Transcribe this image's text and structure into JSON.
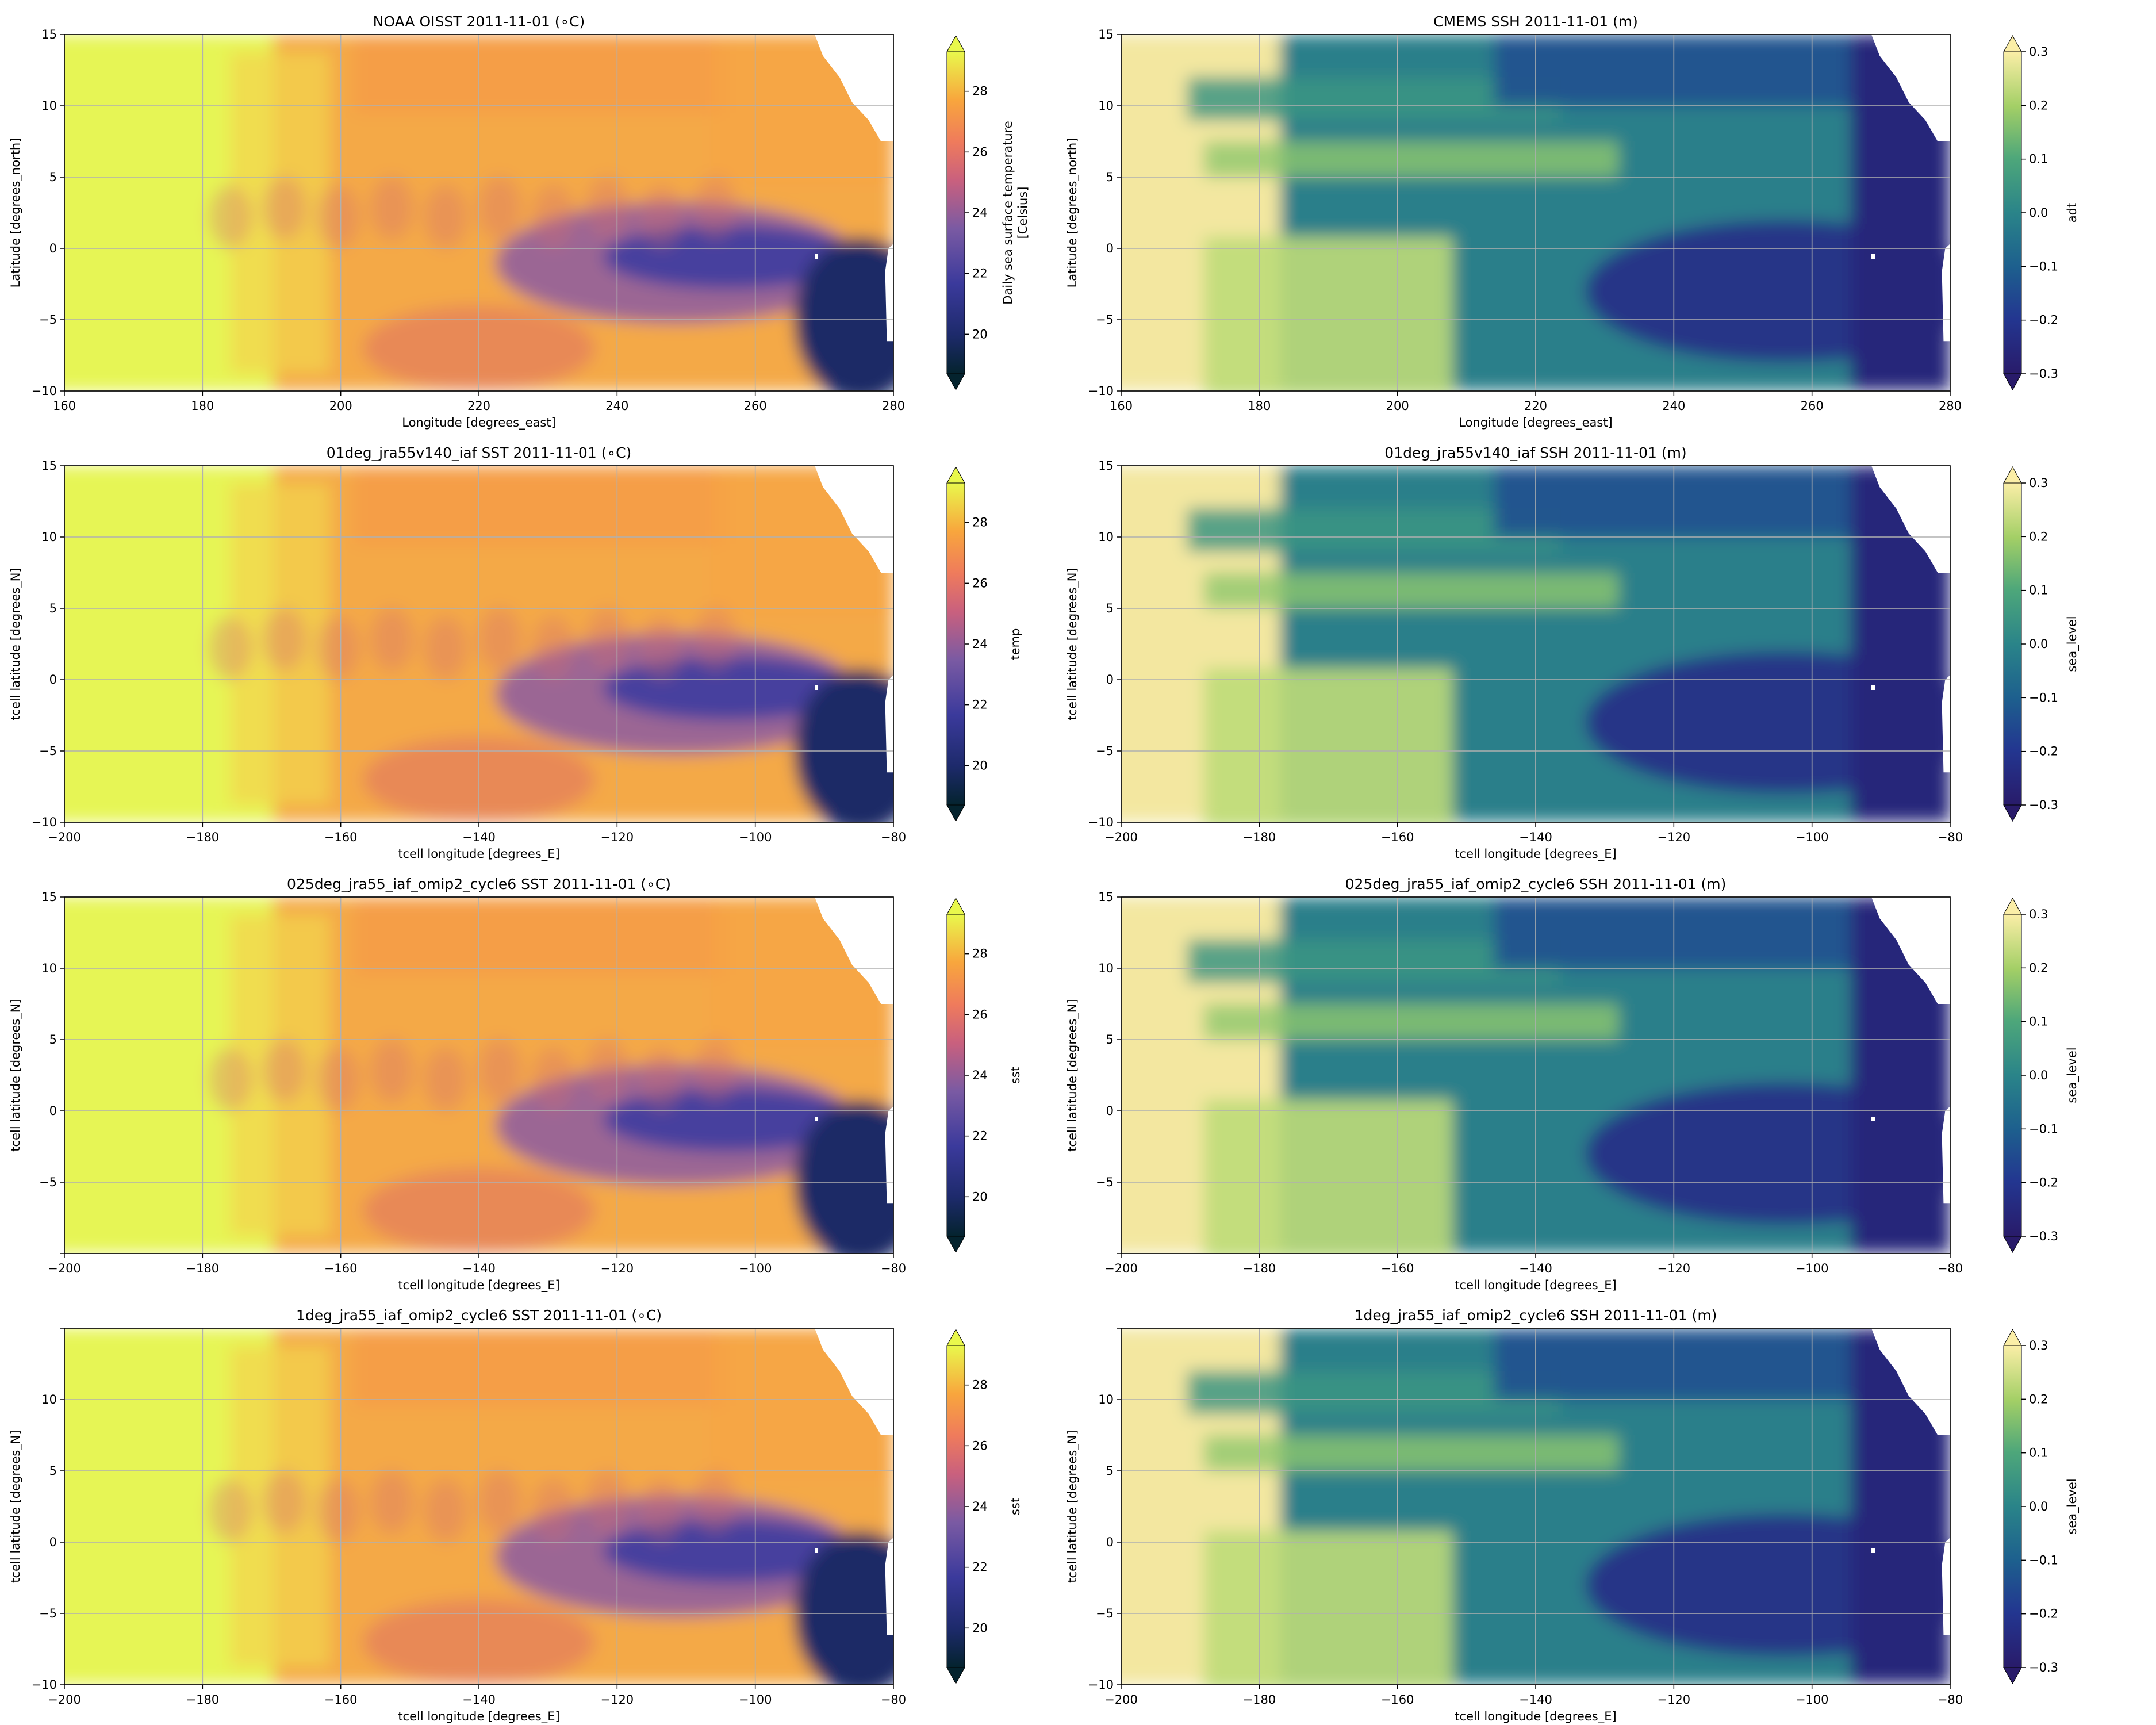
{
  "figure": {
    "left_axes": {
      "xlim": [
        160,
        280
      ],
      "ylim": [
        -10,
        15
      ],
      "xticks": [
        160,
        180,
        200,
        220,
        240,
        260,
        280
      ],
      "yticks": [
        -10,
        -5,
        0,
        5,
        10,
        15
      ],
      "xtick_labels": [
        "160",
        "180",
        "200",
        "220",
        "240",
        "260",
        "280"
      ],
      "model_xtick_labels": [
        "−200",
        "−180",
        "−160",
        "−140",
        "−120",
        "−100",
        "−80"
      ],
      "ytick_labels": [
        "−10",
        "−5",
        "0",
        "5",
        "10",
        "15"
      ],
      "ytick_labels_025": [
        "",
        "−5",
        "0",
        "5",
        "10",
        "15"
      ],
      "ytick_labels_1deg": [
        "−10",
        "−5",
        "0",
        "5",
        "10",
        ""
      ]
    },
    "colorbars": {
      "sst": {
        "vmin": 18.7,
        "vmax": 29.3,
        "ticks": [
          20,
          22,
          24,
          26,
          28
        ],
        "tick_labels": [
          "20",
          "22",
          "24",
          "26",
          "28"
        ],
        "colormap": "cmocean thermal",
        "extend": "both"
      },
      "ssh": {
        "vmin": -0.3,
        "vmax": 0.3,
        "ticks": [
          -0.3,
          -0.2,
          -0.1,
          0.0,
          0.1,
          0.2,
          0.3
        ],
        "tick_labels": [
          "−0.3",
          "−0.2",
          "−0.1",
          "0.0",
          "0.1",
          "0.2",
          "0.3"
        ],
        "colormap": "cmocean haline",
        "extend": "both"
      }
    },
    "land_color": "#ffffff",
    "grid_color": "#b0b0b0"
  },
  "panels": [
    {
      "title": "NOAA OISST 2011-11-01 (∘C)",
      "xlabel": "Longitude [degrees_east]",
      "ylabel": "Latitude [degrees_north]",
      "cbar_label": [
        "Daily sea surface temperature",
        "[Celsius]"
      ]
    },
    {
      "title": "CMEMS SSH 2011-11-01 (m)",
      "xlabel": "Longitude [degrees_east]",
      "ylabel": "Latitude [degrees_north]",
      "cbar_label": [
        "adt"
      ]
    },
    {
      "title": "01deg_jra55v140_iaf SST 2011-11-01 (∘C)",
      "xlabel": "tcell longitude [degrees_E]",
      "ylabel": "tcell latitude [degrees_N]",
      "cbar_label": [
        "temp"
      ]
    },
    {
      "title": "01deg_jra55v140_iaf SSH 2011-11-01 (m)",
      "xlabel": "tcell longitude [degrees_E]",
      "ylabel": "tcell latitude [degrees_N]",
      "cbar_label": [
        "sea_level"
      ]
    },
    {
      "title": "025deg_jra55_iaf_omip2_cycle6 SST 2011-11-01 (∘C)",
      "xlabel": "tcell longitude [degrees_E]",
      "ylabel": "tcell latitude [degrees_N]",
      "cbar_label": [
        "sst"
      ]
    },
    {
      "title": "025deg_jra55_iaf_omip2_cycle6 SSH 2011-11-01 (m)",
      "xlabel": "tcell longitude [degrees_E]",
      "ylabel": "tcell latitude [degrees_N]",
      "cbar_label": [
        "sea_level"
      ]
    },
    {
      "title": "1deg_jra55_iaf_omip2_cycle6 SST 2011-11-01 (∘C)",
      "xlabel": "tcell longitude [degrees_E]",
      "ylabel": "tcell latitude [degrees_N]",
      "cbar_label": [
        "sst"
      ]
    },
    {
      "title": "1deg_jra55_iaf_omip2_cycle6 SSH 2011-11-01 (m)",
      "xlabel": "tcell longitude [degrees_E]",
      "ylabel": "tcell latitude [degrees_N]",
      "cbar_label": [
        "sea_level"
      ]
    }
  ],
  "chart_data": [
    {
      "type": "heatmap",
      "title": "NOAA OISST 2011-11-01 (∘C)",
      "xlabel": "Longitude [degrees_east]",
      "ylabel": "Latitude [degrees_north]",
      "xlim": [
        160,
        280
      ],
      "ylim": [
        -10,
        15
      ],
      "colorbar_label": "Daily sea surface temperature [Celsius]",
      "clim": [
        18.7,
        29.3
      ],
      "colorbar_ticks": [
        20,
        22,
        24,
        26,
        28
      ],
      "grid": true
    },
    {
      "type": "heatmap",
      "title": "CMEMS SSH 2011-11-01 (m)",
      "xlabel": "Longitude [degrees_east]",
      "ylabel": "Latitude [degrees_north]",
      "xlim": [
        160,
        280
      ],
      "ylim": [
        -10,
        15
      ],
      "colorbar_label": "adt",
      "clim": [
        -0.3,
        0.3
      ],
      "colorbar_ticks": [
        -0.3,
        -0.2,
        -0.1,
        0.0,
        0.1,
        0.2,
        0.3
      ],
      "grid": true
    },
    {
      "type": "heatmap",
      "title": "01deg_jra55v140_iaf SST 2011-11-01 (∘C)",
      "xlabel": "tcell longitude [degrees_E]",
      "ylabel": "tcell latitude [degrees_N]",
      "xlim": [
        -200,
        -80
      ],
      "ylim": [
        -10,
        15
      ],
      "colorbar_label": "temp",
      "clim": [
        18.7,
        29.3
      ],
      "colorbar_ticks": [
        20,
        22,
        24,
        26,
        28
      ],
      "grid": true
    },
    {
      "type": "heatmap",
      "title": "01deg_jra55v140_iaf SSH 2011-11-01 (m)",
      "xlabel": "tcell longitude [degrees_E]",
      "ylabel": "tcell latitude [degrees_N]",
      "xlim": [
        -200,
        -80
      ],
      "ylim": [
        -10,
        15
      ],
      "colorbar_label": "sea_level",
      "clim": [
        -0.3,
        0.3
      ],
      "colorbar_ticks": [
        -0.3,
        -0.2,
        -0.1,
        0.0,
        0.1,
        0.2,
        0.3
      ],
      "grid": true
    },
    {
      "type": "heatmap",
      "title": "025deg_jra55_iaf_omip2_cycle6 SST 2011-11-01 (∘C)",
      "xlabel": "tcell longitude [degrees_E]",
      "ylabel": "tcell latitude [degrees_N]",
      "xlim": [
        -200,
        -80
      ],
      "ylim": [
        -10,
        15
      ],
      "colorbar_label": "sst",
      "clim": [
        18.7,
        29.3
      ],
      "colorbar_ticks": [
        20,
        22,
        24,
        26,
        28
      ],
      "grid": true
    },
    {
      "type": "heatmap",
      "title": "025deg_jra55_iaf_omip2_cycle6 SSH 2011-11-01 (m)",
      "xlabel": "tcell longitude [degrees_E]",
      "ylabel": "tcell latitude [degrees_N]",
      "xlim": [
        -200,
        -80
      ],
      "ylim": [
        -10,
        15
      ],
      "colorbar_label": "sea_level",
      "clim": [
        -0.3,
        0.3
      ],
      "colorbar_ticks": [
        -0.3,
        -0.2,
        -0.1,
        0.0,
        0.1,
        0.2,
        0.3
      ],
      "grid": true
    },
    {
      "type": "heatmap",
      "title": "1deg_jra55_iaf_omip2_cycle6 SST 2011-11-01 (∘C)",
      "xlabel": "tcell longitude [degrees_E]",
      "ylabel": "tcell latitude [degrees_N]",
      "xlim": [
        -200,
        -80
      ],
      "ylim": [
        -10,
        15
      ],
      "colorbar_label": "sst",
      "clim": [
        18.7,
        29.3
      ],
      "colorbar_ticks": [
        20,
        22,
        24,
        26,
        28
      ],
      "grid": true
    },
    {
      "type": "heatmap",
      "title": "1deg_jra55_iaf_omip2_cycle6 SSH 2011-11-01 (m)",
      "xlabel": "tcell longitude [degrees_E]",
      "ylabel": "tcell latitude [degrees_N]",
      "xlim": [
        -200,
        -80
      ],
      "ylim": [
        -10,
        15
      ],
      "colorbar_label": "sea_level",
      "clim": [
        -0.3,
        0.3
      ],
      "colorbar_ticks": [
        -0.3,
        -0.2,
        -0.1,
        0.0,
        0.1,
        0.2,
        0.3
      ],
      "grid": true
    }
  ]
}
